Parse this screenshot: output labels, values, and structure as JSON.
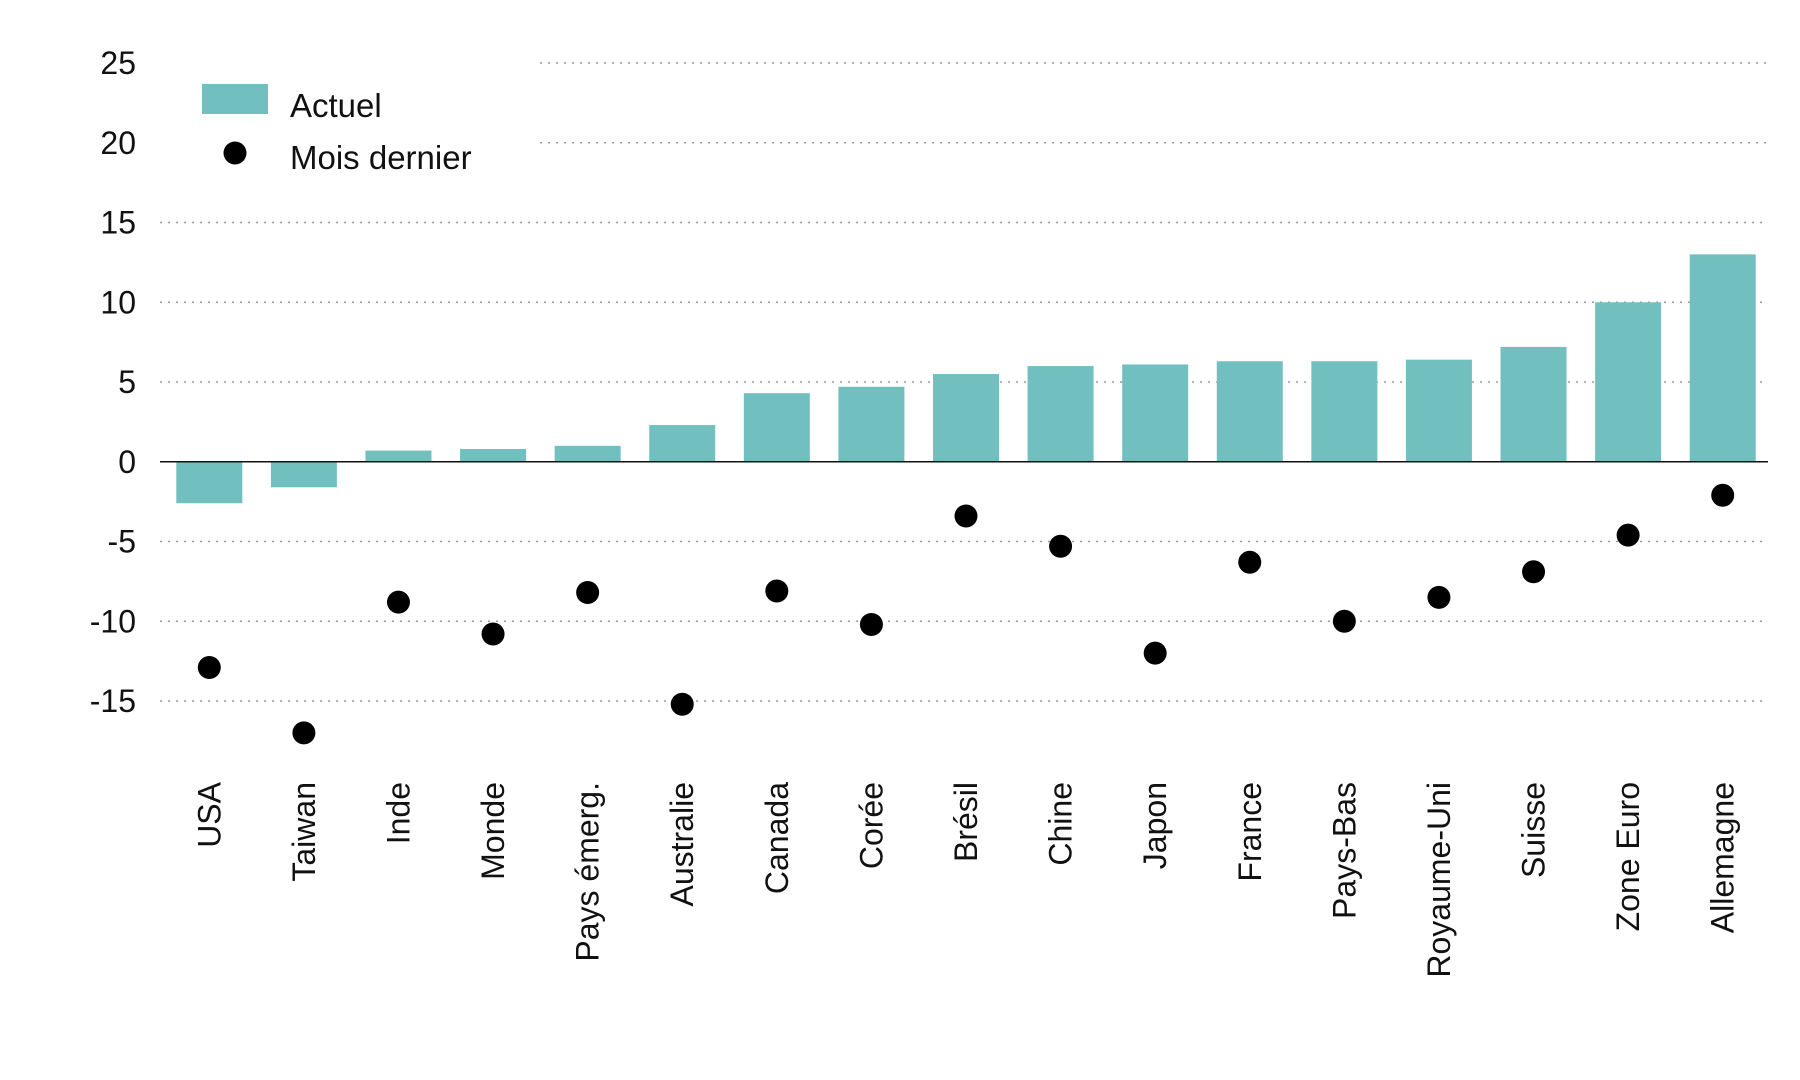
{
  "chart_data": {
    "type": "bar",
    "title": "",
    "xlabel": "",
    "ylabel": "",
    "ylim": [
      -20,
      25
    ],
    "yticks": [
      25,
      20,
      15,
      10,
      5,
      0,
      -5,
      -10,
      -15
    ],
    "grid": true,
    "legend_position": "top-left",
    "categories": [
      "USA",
      "Taiwan",
      "Inde",
      "Monde",
      "Pays émerg.",
      "Australie",
      "Canada",
      "Corée",
      "Brésil",
      "Chine",
      "Japon",
      "France",
      "Pays-Bas",
      "Royaume-Uni",
      "Suisse",
      "Zone Euro",
      "Allemagne"
    ],
    "series": [
      {
        "name": "Actuel",
        "kind": "bar",
        "color": "#72bfc0",
        "values": [
          -2.6,
          -1.6,
          0.7,
          0.8,
          1.0,
          2.3,
          4.3,
          4.7,
          5.5,
          6.0,
          6.1,
          6.3,
          6.3,
          6.4,
          7.2,
          10.0,
          13.0
        ]
      },
      {
        "name": "Mois dernier",
        "kind": "dot",
        "color": "#000000",
        "values": [
          -12.9,
          -17.0,
          -8.8,
          -10.8,
          -8.2,
          -15.2,
          -8.1,
          -10.2,
          -3.4,
          -5.3,
          -12.0,
          -6.3,
          -10.0,
          -8.5,
          -6.9,
          -4.6,
          -2.1
        ]
      }
    ]
  }
}
